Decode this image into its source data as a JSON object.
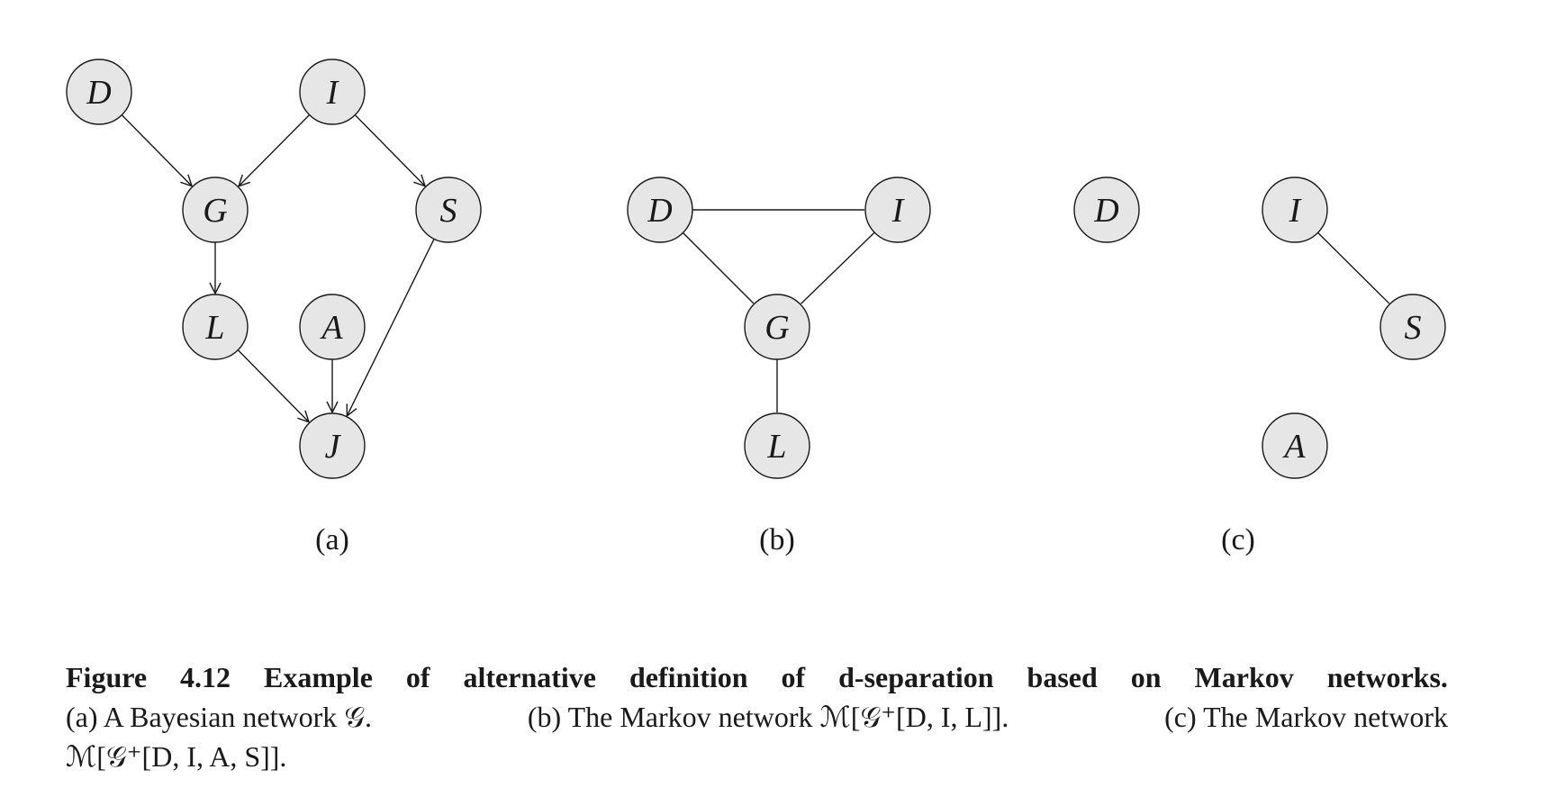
{
  "figure": {
    "panels": [
      {
        "id": "a",
        "label": "(a)",
        "directed": true,
        "nodes": [
          {
            "id": "D",
            "label": "D"
          },
          {
            "id": "I",
            "label": "I"
          },
          {
            "id": "G",
            "label": "G"
          },
          {
            "id": "S",
            "label": "S"
          },
          {
            "id": "L",
            "label": "L"
          },
          {
            "id": "A",
            "label": "A"
          },
          {
            "id": "J",
            "label": "J"
          }
        ],
        "edges": [
          [
            "D",
            "G"
          ],
          [
            "I",
            "G"
          ],
          [
            "I",
            "S"
          ],
          [
            "G",
            "L"
          ],
          [
            "L",
            "J"
          ],
          [
            "A",
            "J"
          ],
          [
            "S",
            "J"
          ]
        ]
      },
      {
        "id": "b",
        "label": "(b)",
        "directed": false,
        "nodes": [
          {
            "id": "D",
            "label": "D"
          },
          {
            "id": "I",
            "label": "I"
          },
          {
            "id": "G",
            "label": "G"
          },
          {
            "id": "L",
            "label": "L"
          }
        ],
        "edges": [
          [
            "D",
            "I"
          ],
          [
            "D",
            "G"
          ],
          [
            "I",
            "G"
          ],
          [
            "G",
            "L"
          ]
        ]
      },
      {
        "id": "c",
        "label": "(c)",
        "directed": false,
        "nodes": [
          {
            "id": "D",
            "label": "D"
          },
          {
            "id": "I",
            "label": "I"
          },
          {
            "id": "S",
            "label": "S"
          },
          {
            "id": "A",
            "label": "A"
          }
        ],
        "edges": [
          [
            "I",
            "S"
          ]
        ]
      }
    ]
  },
  "caption": {
    "line1_words": [
      "Figure",
      "4.12",
      "Example",
      "of",
      "alternative",
      "definition",
      "of",
      "d-separation",
      "based",
      "on",
      "Markov",
      "networks."
    ],
    "line2_parts": [
      "(a) A Bayesian network 𝒢.",
      "(b) The Markov network ℳ[𝒢⁺[D, I, L]].",
      "(c) The Markov network"
    ],
    "line3": "ℳ[𝒢⁺[D, I, A, S]]."
  }
}
